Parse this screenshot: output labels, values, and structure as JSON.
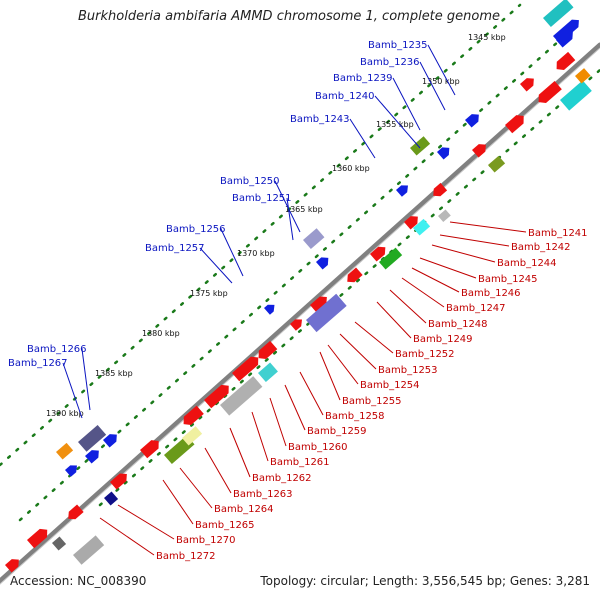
{
  "header": {
    "title": "Burkholderia ambifaria AMMD chromosome 1, complete genome"
  },
  "footer": {
    "accession": "Accession: NC_008390",
    "topology": "Topology: circular; Length: 3,556,545 bp; Genes: 3,281"
  },
  "colors": {
    "forward_label": "#0b15c0",
    "reverse_label": "#c00000",
    "backbone": "#808080",
    "tick": "#1a7a1a"
  },
  "scale_ticks": [
    "1345 kbp",
    "1350 kbp",
    "1355 kbp",
    "1360 kbp",
    "1365 kbp",
    "1370 kbp",
    "1375 kbp",
    "1380 kbp",
    "1385 kbp",
    "1390 kbp"
  ],
  "forward_genes": [
    "Bamb_1235",
    "Bamb_1236",
    "Bamb_1239",
    "Bamb_1240",
    "Bamb_1243",
    "Bamb_1250",
    "Bamb_1251",
    "Bamb_1256",
    "Bamb_1257",
    "Bamb_1266",
    "Bamb_1267"
  ],
  "reverse_genes": [
    "Bamb_1241",
    "Bamb_1242",
    "Bamb_1244",
    "Bamb_1245",
    "Bamb_1246",
    "Bamb_1247",
    "Bamb_1248",
    "Bamb_1249",
    "Bamb_1252",
    "Bamb_1253",
    "Bamb_1254",
    "Bamb_1255",
    "Bamb_1258",
    "Bamb_1259",
    "Bamb_1260",
    "Bamb_1261",
    "Bamb_1262",
    "Bamb_1263",
    "Bamb_1264",
    "Bamb_1265",
    "Bamb_1270",
    "Bamb_1272"
  ]
}
